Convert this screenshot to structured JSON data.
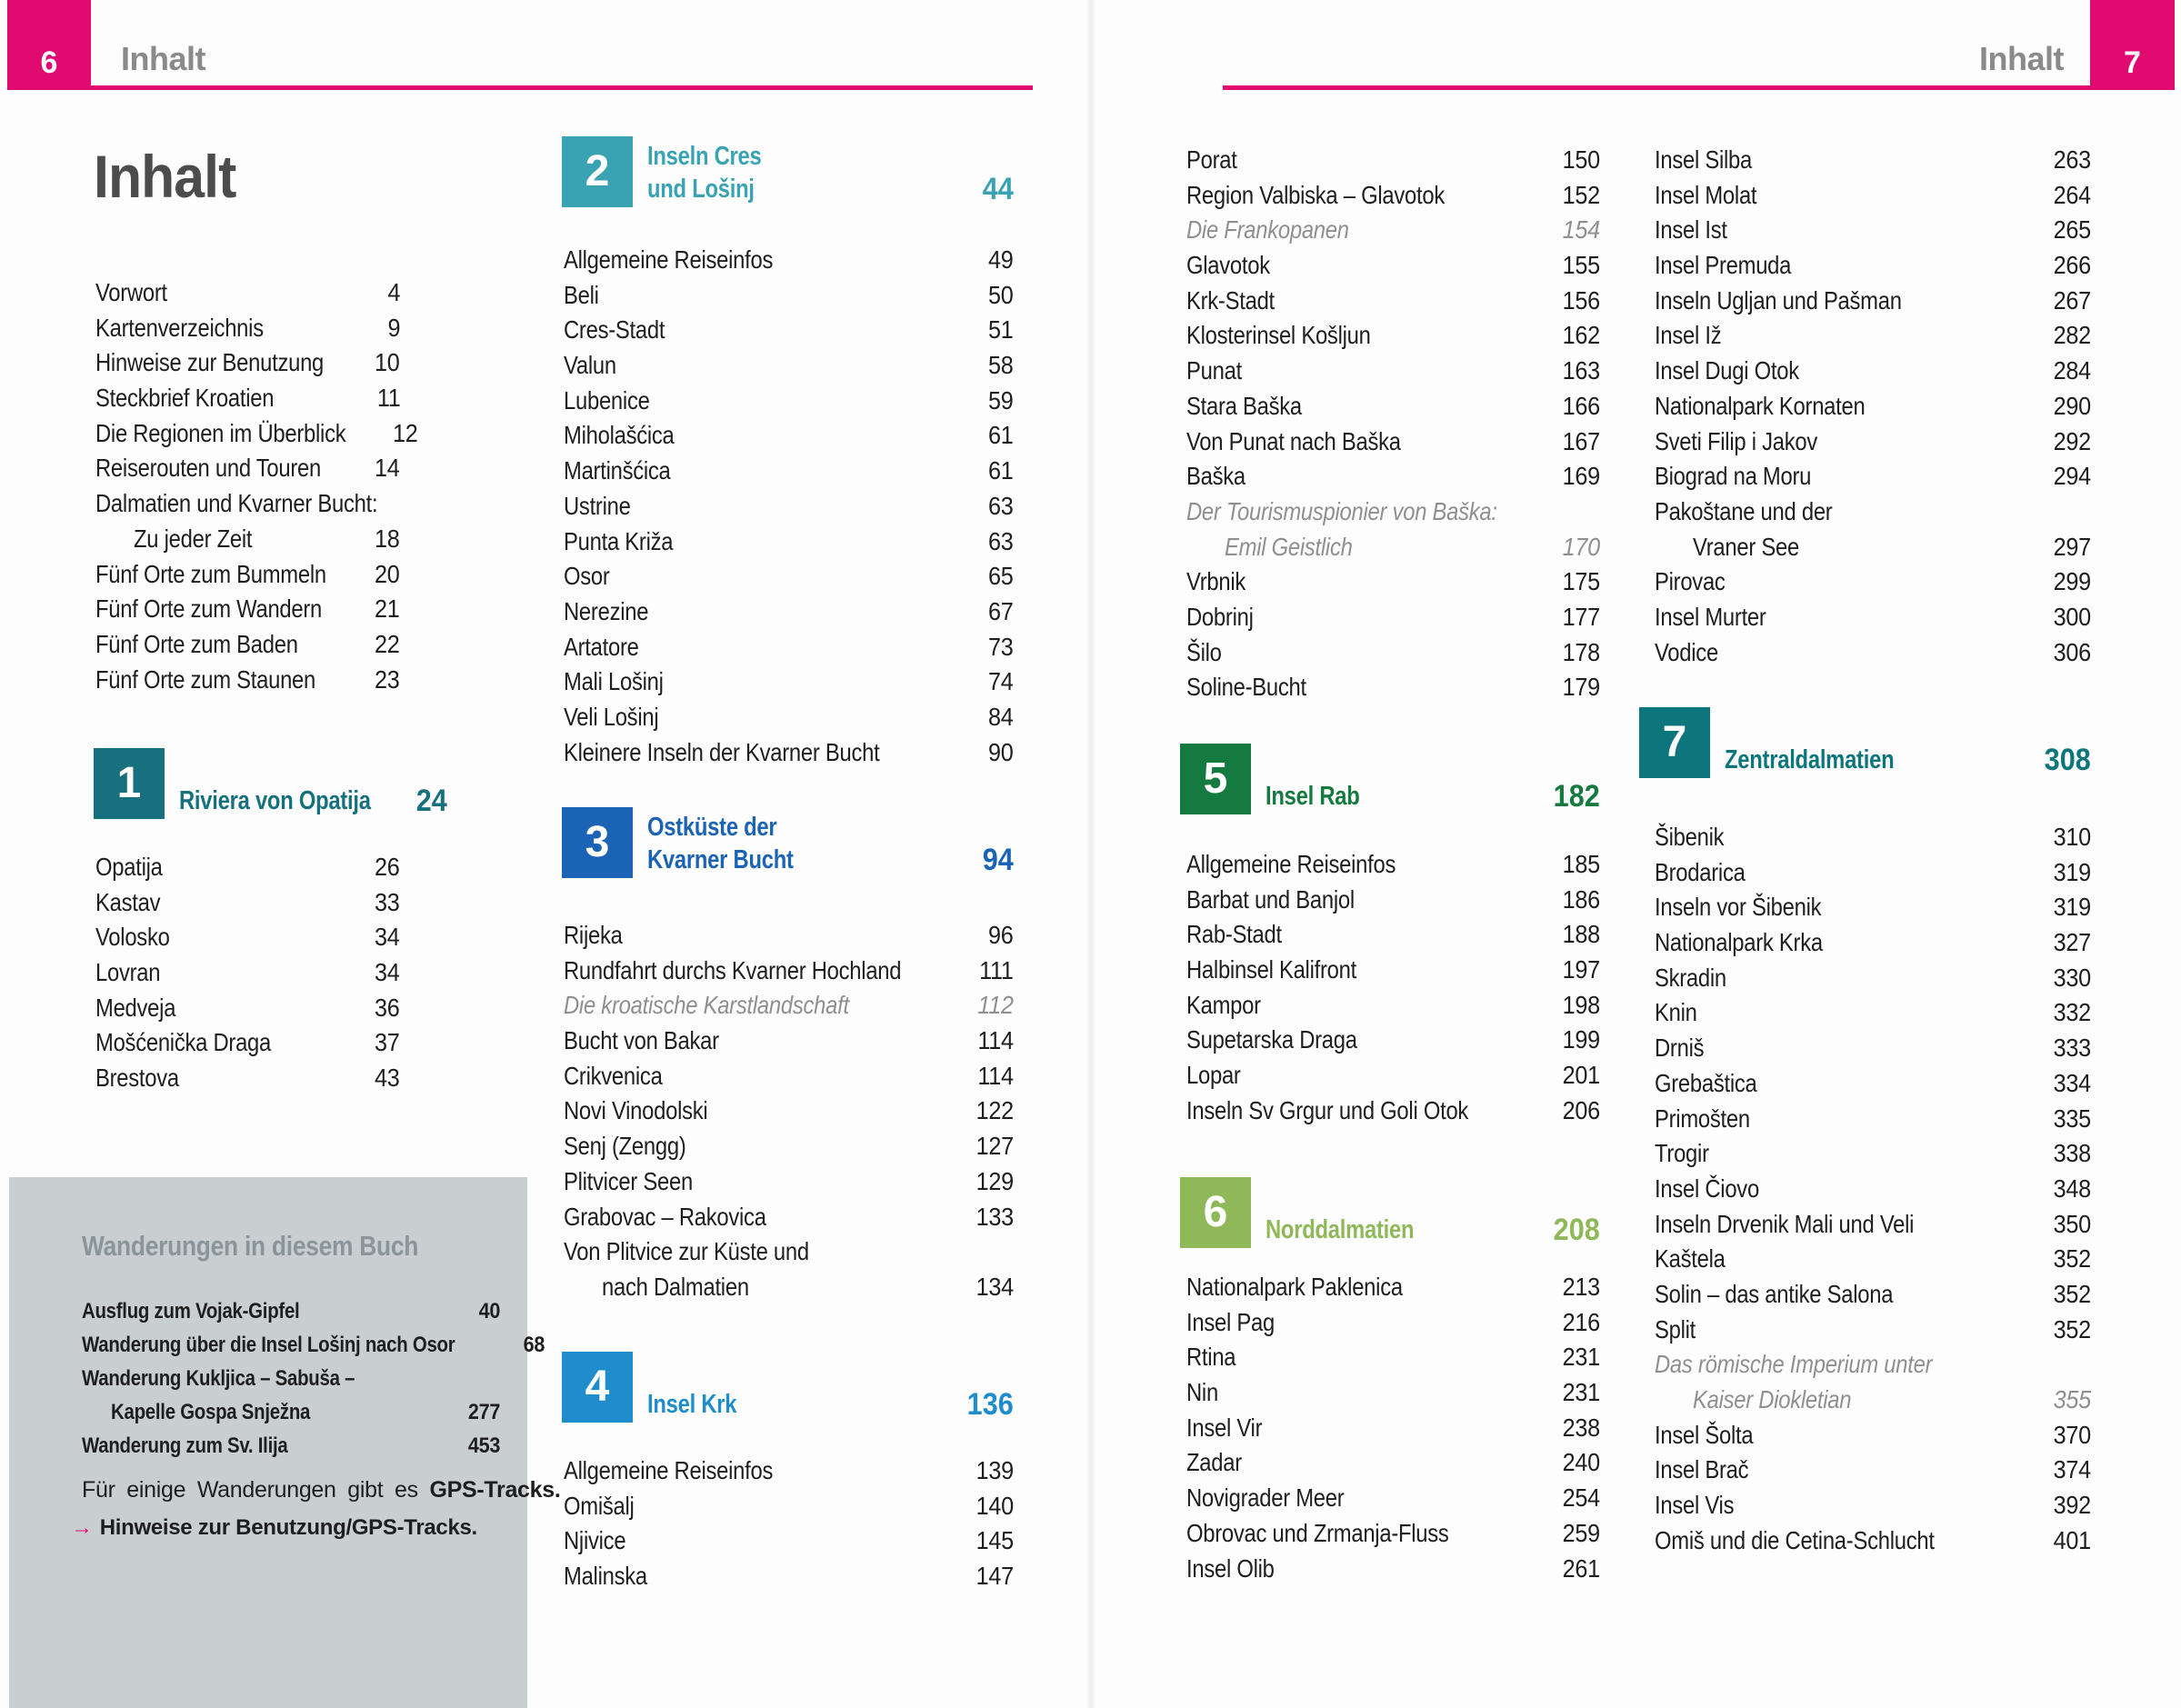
{
  "colors": {
    "accent_pink": "#e00a70",
    "body_text": "#1e1e1e",
    "italic_note_gray": "#8f8f8f",
    "running_header_gray": "#8a8a8a",
    "main_title_gray": "#4c4c4c",
    "hike_box_background": "#c9ced0",
    "hike_box_heading": "#8a959a",
    "section_1": "#16707e",
    "section_2": "#39a3b4",
    "section_3": "#1b63b5",
    "section_4": "#1f8dcb",
    "section_5": "#157a40",
    "section_6": "#8fb958",
    "section_7": "#0d767d"
  },
  "pages": [
    {
      "page_number": "6",
      "running_header": "Inhalt",
      "main_title": "Inhalt",
      "columns": [
        {
          "blocks": [
            {
              "type": "rows",
              "items": [
                {
                  "label": "Vorwort",
                  "page": "4"
                },
                {
                  "label": "Kartenverzeichnis",
                  "page": "9"
                },
                {
                  "label": "Hinweise zur Benutzung",
                  "page": "10"
                },
                {
                  "label": "Steckbrief Kroatien",
                  "page": "11"
                },
                {
                  "label": "Die Regionen im Überblick",
                  "page": "12"
                },
                {
                  "label": "Reiserouten und Touren",
                  "page": "14"
                },
                {
                  "label": "Dalmatien und Kvarner Bucht:",
                  "page": ""
                },
                {
                  "label": "Zu jeder Zeit",
                  "page": "18",
                  "indent": true
                },
                {
                  "label": "Fünf Orte zum Bummeln",
                  "page": "20"
                },
                {
                  "label": "Fünf Orte zum Wandern",
                  "page": "21"
                },
                {
                  "label": "Fünf Orte zum Baden",
                  "page": "22"
                },
                {
                  "label": "Fünf Orte zum Staunen",
                  "page": "23"
                }
              ]
            },
            {
              "type": "section",
              "number": "1",
              "title_lines": [
                "Riviera von Opatija"
              ],
              "page": "24",
              "color": "#16707e"
            },
            {
              "type": "rows",
              "items": [
                {
                  "label": "Opatija",
                  "page": "26"
                },
                {
                  "label": "Kastav",
                  "page": "33"
                },
                {
                  "label": "Volosko",
                  "page": "34"
                },
                {
                  "label": "Lovran",
                  "page": "34"
                },
                {
                  "label": "Medveja",
                  "page": "36"
                },
                {
                  "label": "Mošćenička Draga",
                  "page": "37"
                },
                {
                  "label": "Brestova",
                  "page": "43"
                }
              ]
            }
          ]
        },
        {
          "blocks": [
            {
              "type": "section",
              "number": "2",
              "title_lines": [
                "Inseln Cres",
                "und Lošinj"
              ],
              "page": "44",
              "color": "#39a3b4"
            },
            {
              "type": "rows",
              "items": [
                {
                  "label": "Allgemeine Reiseinfos",
                  "page": "49"
                },
                {
                  "label": "Beli",
                  "page": "50"
                },
                {
                  "label": "Cres-Stadt",
                  "page": "51"
                },
                {
                  "label": "Valun",
                  "page": "58"
                },
                {
                  "label": "Lubenice",
                  "page": "59"
                },
                {
                  "label": "Miholašćica",
                  "page": "61"
                },
                {
                  "label": "Martinšćica",
                  "page": "61"
                },
                {
                  "label": "Ustrine",
                  "page": "63"
                },
                {
                  "label": "Punta Križa",
                  "page": "63"
                },
                {
                  "label": "Osor",
                  "page": "65"
                },
                {
                  "label": "Nerezine",
                  "page": "67"
                },
                {
                  "label": "Artatore",
                  "page": "73"
                },
                {
                  "label": "Mali Lošinj",
                  "page": "74"
                },
                {
                  "label": "Veli Lošinj",
                  "page": "84"
                },
                {
                  "label": "Kleinere Inseln der Kvarner Bucht",
                  "page": "90"
                }
              ]
            },
            {
              "type": "section",
              "number": "3",
              "title_lines": [
                "Ostküste der",
                "Kvarner Bucht"
              ],
              "page": "94",
              "color": "#1b63b5"
            },
            {
              "type": "rows",
              "items": [
                {
                  "label": "Rijeka",
                  "page": "96"
                },
                {
                  "label": "Rundfahrt durchs Kvarner Hochland",
                  "page": "111"
                },
                {
                  "label": "Die kroatische Karstlandschaft",
                  "page": "112",
                  "italic": true
                },
                {
                  "label": "Bucht von Bakar",
                  "page": "114"
                },
                {
                  "label": "Crikvenica",
                  "page": "114"
                },
                {
                  "label": "Novi Vinodolski",
                  "page": "122"
                },
                {
                  "label": "Senj (Zengg)",
                  "page": "127"
                },
                {
                  "label": "Plitvicer Seen",
                  "page": "129"
                },
                {
                  "label": "Grabovac – Rakovica",
                  "page": "133"
                },
                {
                  "label": "Von Plitvice zur Küste und",
                  "page": ""
                },
                {
                  "label": "nach Dalmatien",
                  "page": "134",
                  "indent": true
                }
              ]
            },
            {
              "type": "section",
              "number": "4",
              "title_lines": [
                "Insel Krk"
              ],
              "page": "136",
              "color": "#1f8dcb"
            },
            {
              "type": "rows",
              "items": [
                {
                  "label": "Allgemeine Reiseinfos",
                  "page": "139"
                },
                {
                  "label": "Omišalj",
                  "page": "140"
                },
                {
                  "label": "Njivice",
                  "page": "145"
                },
                {
                  "label": "Malinska",
                  "page": "147"
                }
              ]
            }
          ]
        }
      ],
      "hike_box": {
        "heading": "Wanderungen in diesem Buch",
        "items": [
          {
            "label": "Ausflug zum Vojak-Gipfel",
            "page": "40"
          },
          {
            "label": "Wanderung über die Insel Lošinj nach Osor",
            "page": "68"
          },
          {
            "label": "Wanderung Kukljica – Sabuša –",
            "page": ""
          },
          {
            "label": "Kapelle Gospa Snježna",
            "page": "277",
            "indent": true
          },
          {
            "label": "Wanderung zum Sv. Ilija",
            "page": "453"
          }
        ],
        "note": {
          "text": "Für einige Wanderungen gibt es ",
          "bold": "GPS-Tracks."
        },
        "link": {
          "arrow_icon": "→",
          "text": "Hinweise zur Benutzung/GPS-Tracks."
        }
      }
    },
    {
      "page_number": "7",
      "running_header": "Inhalt",
      "columns": [
        {
          "blocks": [
            {
              "type": "rows",
              "items": [
                {
                  "label": "Porat",
                  "page": "150"
                },
                {
                  "label": "Region Valbiska – Glavotok",
                  "page": "152"
                },
                {
                  "label": "Die Frankopanen",
                  "page": "154",
                  "italic": true
                },
                {
                  "label": "Glavotok",
                  "page": "155"
                },
                {
                  "label": "Krk-Stadt",
                  "page": "156"
                },
                {
                  "label": "Klosterinsel Košljun",
                  "page": "162"
                },
                {
                  "label": "Punat",
                  "page": "163"
                },
                {
                  "label": "Stara Baška",
                  "page": "166"
                },
                {
                  "label": "Von Punat nach Baška",
                  "page": "167"
                },
                {
                  "label": "Baška",
                  "page": "169"
                },
                {
                  "label": "Der Tourismuspionier von Baška:",
                  "page": "",
                  "italic": true
                },
                {
                  "label": "Emil Geistlich",
                  "page": "170",
                  "italic": true,
                  "indent": true
                },
                {
                  "label": "Vrbnik",
                  "page": "175"
                },
                {
                  "label": "Dobrinj",
                  "page": "177"
                },
                {
                  "label": "Šilo",
                  "page": "178"
                },
                {
                  "label": "Soline-Bucht",
                  "page": "179"
                }
              ]
            },
            {
              "type": "section",
              "number": "5",
              "title_lines": [
                "Insel Rab"
              ],
              "page": "182",
              "color": "#157a40"
            },
            {
              "type": "rows",
              "items": [
                {
                  "label": "Allgemeine Reiseinfos",
                  "page": "185"
                },
                {
                  "label": "Barbat und Banjol",
                  "page": "186"
                },
                {
                  "label": "Rab-Stadt",
                  "page": "188"
                },
                {
                  "label": "Halbinsel Kalifront",
                  "page": "197"
                },
                {
                  "label": "Kampor",
                  "page": "198"
                },
                {
                  "label": "Supetarska Draga",
                  "page": "199"
                },
                {
                  "label": "Lopar",
                  "page": "201"
                },
                {
                  "label": "Inseln Sv Grgur und Goli Otok",
                  "page": "206"
                }
              ]
            },
            {
              "type": "section",
              "number": "6",
              "title_lines": [
                "Norddalmatien"
              ],
              "page": "208",
              "color": "#8fb958"
            },
            {
              "type": "rows",
              "items": [
                {
                  "label": "Nationalpark Paklenica",
                  "page": "213"
                },
                {
                  "label": "Insel Pag",
                  "page": "216"
                },
                {
                  "label": "Rtina",
                  "page": "231"
                },
                {
                  "label": "Nin",
                  "page": "231"
                },
                {
                  "label": "Insel Vir",
                  "page": "238"
                },
                {
                  "label": "Zadar",
                  "page": "240"
                },
                {
                  "label": "Novigrader Meer",
                  "page": "254"
                },
                {
                  "label": "Obrovac und Zrmanja-Fluss",
                  "page": "259"
                },
                {
                  "label": "Insel Olib",
                  "page": "261"
                }
              ]
            }
          ]
        },
        {
          "blocks": [
            {
              "type": "rows",
              "items": [
                {
                  "label": "Insel Silba",
                  "page": "263"
                },
                {
                  "label": "Insel Molat",
                  "page": "264"
                },
                {
                  "label": "Insel Ist",
                  "page": "265"
                },
                {
                  "label": "Insel Premuda",
                  "page": "266"
                },
                {
                  "label": "Inseln Ugljan und Pašman",
                  "page": "267"
                },
                {
                  "label": "Insel Iž",
                  "page": "282"
                },
                {
                  "label": "Insel Dugi Otok",
                  "page": "284"
                },
                {
                  "label": "Nationalpark Kornaten",
                  "page": "290"
                },
                {
                  "label": "Sveti Filip i Jakov",
                  "page": "292"
                },
                {
                  "label": "Biograd na Moru",
                  "page": "294"
                },
                {
                  "label": "Pakoštane und der",
                  "page": ""
                },
                {
                  "label": "Vraner See",
                  "page": "297",
                  "indent": true
                },
                {
                  "label": "Pirovac",
                  "page": "299"
                },
                {
                  "label": "Insel Murter",
                  "page": "300"
                },
                {
                  "label": "Vodice",
                  "page": "306"
                }
              ]
            },
            {
              "type": "section",
              "number": "7",
              "title_lines": [
                "Zentraldalmatien"
              ],
              "page": "308",
              "color": "#0d767d"
            },
            {
              "type": "rows",
              "items": [
                {
                  "label": "Šibenik",
                  "page": "310"
                },
                {
                  "label": "Brodarica",
                  "page": "319"
                },
                {
                  "label": "Inseln vor Šibenik",
                  "page": "319"
                },
                {
                  "label": "Nationalpark Krka",
                  "page": "327"
                },
                {
                  "label": "Skradin",
                  "page": "330"
                },
                {
                  "label": "Knin",
                  "page": "332"
                },
                {
                  "label": "Drniš",
                  "page": "333"
                },
                {
                  "label": "Grebaštica",
                  "page": "334"
                },
                {
                  "label": "Primošten",
                  "page": "335"
                },
                {
                  "label": "Trogir",
                  "page": "338"
                },
                {
                  "label": "Insel Čiovo",
                  "page": "348"
                },
                {
                  "label": "Inseln Drvenik Mali und Veli",
                  "page": "350"
                },
                {
                  "label": "Kaštela",
                  "page": "352"
                },
                {
                  "label": "Solin – das antike Salona",
                  "page": "352"
                },
                {
                  "label": "Split",
                  "page": "352"
                },
                {
                  "label": "Das römische Imperium unter",
                  "page": "",
                  "italic": true
                },
                {
                  "label": "Kaiser Diokletian",
                  "page": "355",
                  "italic": true,
                  "indent": true
                },
                {
                  "label": "Insel Šolta",
                  "page": "370"
                },
                {
                  "label": "Insel Brač",
                  "page": "374"
                },
                {
                  "label": "Insel Vis",
                  "page": "392"
                },
                {
                  "label": "Omiš und die Cetina-Schlucht",
                  "page": "401"
                }
              ]
            }
          ]
        }
      ]
    }
  ]
}
